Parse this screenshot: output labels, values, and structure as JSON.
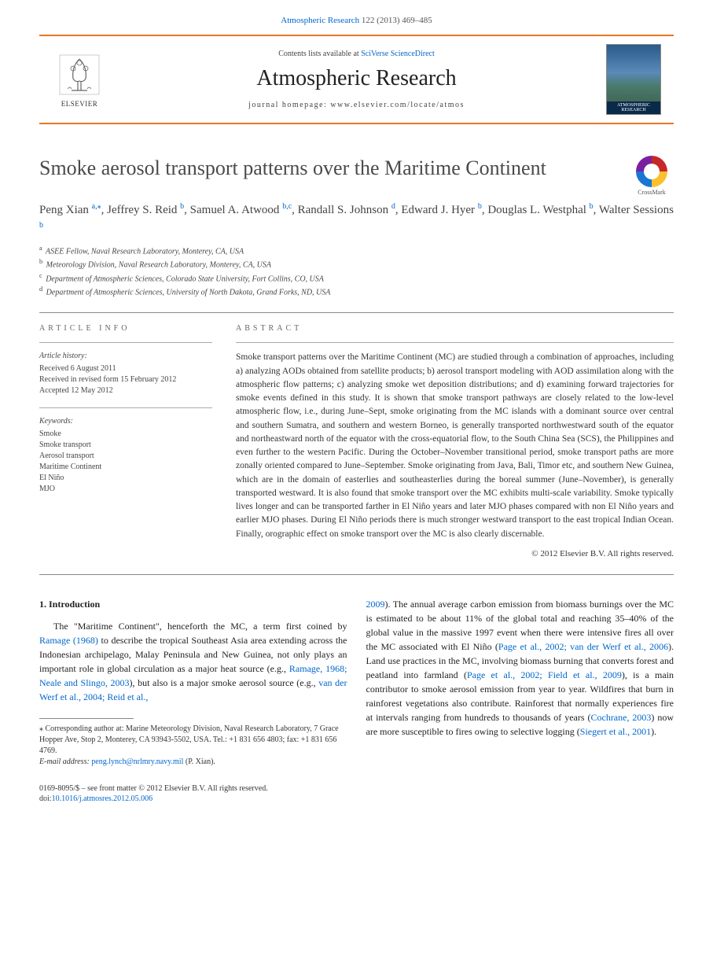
{
  "header": {
    "citation_pre": "Atmospheric Research",
    "citation_rest": " 122 (2013) 469–485",
    "contents_pre": "Contents lists available at ",
    "contents_link": "SciVerse ScienceDirect",
    "journal_name": "Atmospheric Research",
    "homepage_pre": "journal homepage: ",
    "homepage_url": "www.elsevier.com/locate/atmos",
    "elsevier": "ELSEVIER",
    "cover_label": "ATMOSPHERIC RESEARCH"
  },
  "title": "Smoke aerosol transport patterns over the Maritime Continent",
  "crossmark": "CrossMark",
  "authors": [
    {
      "name": "Peng Xian",
      "sup": "a,",
      "corr": "⁎"
    },
    {
      "name": "Jeffrey S. Reid",
      "sup": "b"
    },
    {
      "name": "Samuel A. Atwood",
      "sup": "b,c"
    },
    {
      "name": "Randall S. Johnson",
      "sup": "d"
    },
    {
      "name": "Edward J. Hyer",
      "sup": "b"
    },
    {
      "name": "Douglas L. Westphal",
      "sup": "b"
    },
    {
      "name": "Walter Sessions",
      "sup": "b"
    }
  ],
  "affiliations": [
    {
      "sup": "a",
      "text": "ASEE Fellow, Naval Research Laboratory, Monterey, CA, USA"
    },
    {
      "sup": "b",
      "text": "Meteorology Division, Naval Research Laboratory, Monterey, CA, USA"
    },
    {
      "sup": "c",
      "text": "Department of Atmospheric Sciences, Colorado State University, Fort Collins, CO, USA"
    },
    {
      "sup": "d",
      "text": "Department of Atmospheric Sciences, University of North Dakota, Grand Forks, ND, USA"
    }
  ],
  "info": {
    "heading": "ARTICLE INFO",
    "history_label": "Article history:",
    "history": [
      "Received 6 August 2011",
      "Received in revised form 15 February 2012",
      "Accepted 12 May 2012"
    ],
    "keywords_label": "Keywords:",
    "keywords": [
      "Smoke",
      "Smoke transport",
      "Aerosol transport",
      "Maritime Continent",
      "El Niño",
      "MJO"
    ]
  },
  "abstract": {
    "heading": "ABSTRACT",
    "text": "Smoke transport patterns over the Maritime Continent (MC) are studied through a combination of approaches, including a) analyzing AODs obtained from satellite products; b) aerosol transport modeling with AOD assimilation along with the atmospheric flow patterns; c) analyzing smoke wet deposition distributions; and d) examining forward trajectories for smoke events defined in this study. It is shown that smoke transport pathways are closely related to the low-level atmospheric flow, i.e., during June–Sept, smoke originating from the MC islands with a dominant source over central and southern Sumatra, and southern and western Borneo, is generally transported northwestward south of the equator and northeastward north of the equator with the cross-equatorial flow, to the South China Sea (SCS), the Philippines and even further to the western Pacific. During the October–November transitional period, smoke transport paths are more zonally oriented compared to June–September. Smoke originating from Java, Bali, Timor etc, and southern New Guinea, which are in the domain of easterlies and southeasterlies during the boreal summer (June–November), is generally transported westward. It is also found that smoke transport over the MC exhibits multi-scale variability. Smoke typically lives longer and can be transported farther in El Niño years and later MJO phases compared with non El Niño years and earlier MJO phases. During El Niño periods there is much stronger westward transport to the east tropical Indian Ocean. Finally, orographic effect on smoke transport over the MC is also clearly discernable.",
    "copyright": "© 2012 Elsevier B.V. All rights reserved."
  },
  "sections": {
    "intro_head": "1. Introduction",
    "col1_p1_a": "The \"Maritime Continent\", henceforth the MC, a term first coined by ",
    "col1_link1": "Ramage (1968)",
    "col1_p1_b": " to describe the tropical Southeast Asia area extending across the Indonesian archipelago, Malay Peninsula and New Guinea, not only plays an important role in global circulation as a major heat source (e.g., ",
    "col1_link2": "Ramage, 1968; Neale and Slingo, 2003",
    "col1_p1_c": "), but also is a major smoke aerosol source (e.g., ",
    "col1_link3": "van der Werf et al., 2004; Reid et al.,",
    "col2_link1": "2009",
    "col2_p1_a": "). The annual average carbon emission from biomass burnings over the MC is estimated to be about 11% of the global total and reaching 35–40% of the global value in the massive 1997 event when there were intensive fires all over the MC associated with El Niño (",
    "col2_link2": "Page et al., 2002; van der Werf et al., 2006",
    "col2_p1_b": "). Land use practices in the MC, involving biomass burning that converts forest and peatland into farmland (",
    "col2_link3": "Page et al., 2002; Field et al., 2009",
    "col2_p1_c": "), is a main contributor to smoke aerosol emission from year to year. Wildfires that burn in rainforest vegetations also contribute. Rainforest that normally experiences fire at intervals ranging from hundreds to thousands of years (",
    "col2_link4": "Cochrane, 2003",
    "col2_p1_d": ") now are more susceptible to fires owing to selective logging (",
    "col2_link5": "Siegert et al., 2001",
    "col2_p1_e": ")."
  },
  "footnote": {
    "corr": "⁎ Corresponding author at: Marine Meteorology Division, Naval Research Laboratory, 7 Grace Hopper Ave, Stop 2, Monterey, CA 93943-5502, USA. Tel.: +1 831 656 4803; fax: +1 831 656 4769.",
    "email_label": "E-mail address: ",
    "email": "peng.lynch@nrlmry.navy.mil",
    "email_person": " (P. Xian)."
  },
  "bottom": {
    "issn": "0169-8095/$ – see front matter © 2012 Elsevier B.V. All rights reserved.",
    "doi_label": "doi:",
    "doi": "10.1016/j.atmosres.2012.05.006"
  },
  "colors": {
    "orange": "#e87722",
    "link": "#0066cc"
  }
}
